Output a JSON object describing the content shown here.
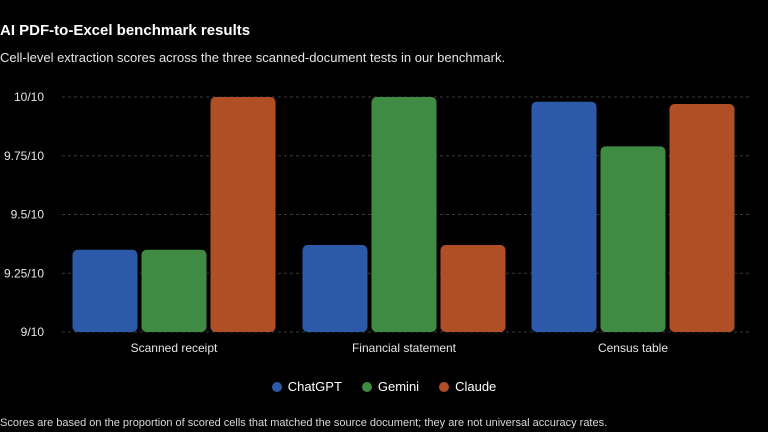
{
  "header": {
    "title": "AI PDF-to-Excel benchmark results",
    "subtitle": "Cell-level extraction scores across the three scanned-document tests in our benchmark."
  },
  "footnote": "Scores are based on the proportion of scored cells that matched the source document; they are not universal accuracy rates.",
  "colors": {
    "ChatGPT": "#2d5aa8",
    "Gemini": "#3f8b44",
    "Claude": "#b04f26"
  },
  "chart_data": {
    "type": "bar",
    "categories": [
      "Scanned receipt",
      "Financial statement",
      "Census table"
    ],
    "series": [
      {
        "name": "ChatGPT",
        "values": [
          9.35,
          9.37,
          9.98
        ]
      },
      {
        "name": "Gemini",
        "values": [
          9.35,
          10.0,
          9.79
        ]
      },
      {
        "name": "Claude",
        "values": [
          10.0,
          9.37,
          9.97
        ]
      }
    ],
    "ylim": [
      9,
      10
    ],
    "yticks": [
      {
        "value": 9,
        "label": "9/10"
      },
      {
        "value": 9.25,
        "label": "9.25/10"
      },
      {
        "value": 9.5,
        "label": "9.5/10"
      },
      {
        "value": 9.75,
        "label": "9.75/10"
      },
      {
        "value": 10,
        "label": "10/10"
      }
    ],
    "grid": true,
    "legend": "bottom"
  }
}
